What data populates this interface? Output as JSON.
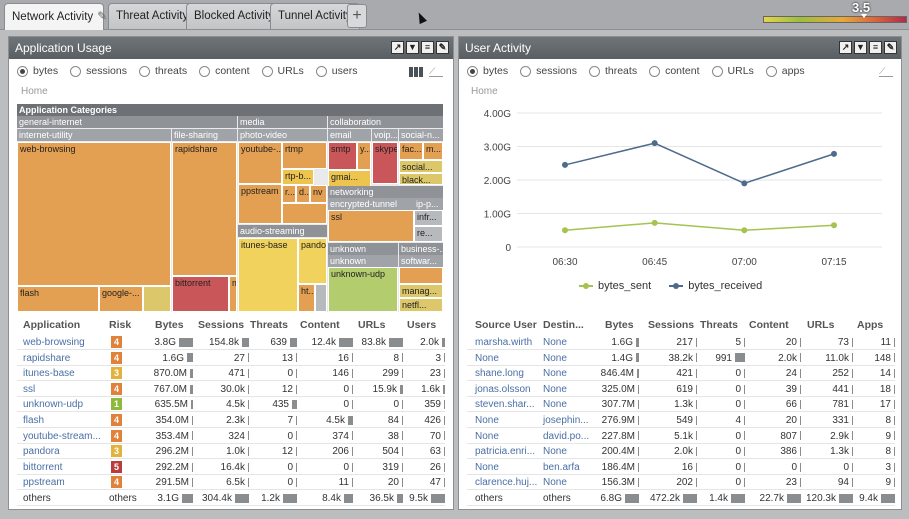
{
  "tabs": [
    {
      "label": "Network Activity",
      "active": true
    },
    {
      "label": "Threat Activity",
      "active": false
    },
    {
      "label": "Blocked Activity",
      "active": false
    },
    {
      "label": "Tunnel Activity",
      "active": false
    }
  ],
  "add_tab_label": "+",
  "risk_scale_value": "3.5",
  "app_usage": {
    "title": "Application Usage",
    "radios": [
      "bytes",
      "sessions",
      "threats",
      "content",
      "URLs",
      "users"
    ],
    "selected": "bytes",
    "breadcrumb": "Home",
    "treemap": {
      "root": "Application Categories",
      "categories": [
        "general-internet",
        "media",
        "collaboration",
        "networking",
        "unknown",
        "business-..."
      ],
      "subcategories": [
        "internet-utility",
        "file-sharing",
        "photo-video",
        "email",
        "voip...",
        "social-n...",
        "encrypted-tunnel",
        "ip-p...",
        "audio-streaming",
        "unknown",
        "softwar..."
      ],
      "apps": [
        "web-browsing",
        "rapidshare",
        "youtube-...",
        "rtmp",
        "smtp",
        "y...",
        "skype",
        "fac...",
        "m...",
        "gmai...",
        "social...",
        "rtp-b...",
        "black...",
        "ppstream",
        "r...",
        "d...",
        "nv",
        "ssl",
        "infr...",
        "itunes-base",
        "pando...",
        "re...",
        "unknown-udp",
        "flash",
        "google-...",
        "bittorrent",
        "ht...",
        "manag...",
        "netfl..."
      ]
    },
    "columns": [
      "Application",
      "Risk",
      "Bytes",
      "Sessions",
      "Threats",
      "Content",
      "URLs",
      "Users"
    ],
    "rows": [
      {
        "app": "web-browsing",
        "risk": "4",
        "bytes": "3.8G",
        "sessions": "154.8k",
        "threats": "639",
        "content": "12.4k",
        "urls": "83.8k",
        "users": "2.0k"
      },
      {
        "app": "rapidshare",
        "risk": "4",
        "bytes": "1.6G",
        "sessions": "27",
        "threats": "13",
        "content": "16",
        "urls": "8",
        "users": "3"
      },
      {
        "app": "itunes-base",
        "risk": "3",
        "bytes": "870.0M",
        "sessions": "471",
        "threats": "0",
        "content": "146",
        "urls": "299",
        "users": "23"
      },
      {
        "app": "ssl",
        "risk": "4",
        "bytes": "767.0M",
        "sessions": "30.0k",
        "threats": "12",
        "content": "0",
        "urls": "15.9k",
        "users": "1.6k"
      },
      {
        "app": "unknown-udp",
        "risk": "1",
        "bytes": "635.5M",
        "sessions": "4.5k",
        "threats": "435",
        "content": "0",
        "urls": "0",
        "users": "359"
      },
      {
        "app": "flash",
        "risk": "4",
        "bytes": "354.0M",
        "sessions": "2.3k",
        "threats": "7",
        "content": "4.5k",
        "urls": "84",
        "users": "426"
      },
      {
        "app": "youtube-stream...",
        "risk": "4",
        "bytes": "353.4M",
        "sessions": "324",
        "threats": "0",
        "content": "374",
        "urls": "38",
        "users": "70"
      },
      {
        "app": "pandora",
        "risk": "3",
        "bytes": "296.2M",
        "sessions": "1.0k",
        "threats": "12",
        "content": "206",
        "urls": "504",
        "users": "63"
      },
      {
        "app": "bittorrent",
        "risk": "5",
        "bytes": "292.2M",
        "sessions": "16.4k",
        "threats": "0",
        "content": "0",
        "urls": "319",
        "users": "26"
      },
      {
        "app": "ppstream",
        "risk": "4",
        "bytes": "291.5M",
        "sessions": "6.5k",
        "threats": "0",
        "content": "11",
        "urls": "20",
        "users": "47"
      },
      {
        "app": "others",
        "risk": "others",
        "bytes": "3.1G",
        "sessions": "304.4k",
        "threats": "1.2k",
        "content": "8.4k",
        "urls": "36.5k",
        "users": "9.5k"
      }
    ],
    "risk_colors": {
      "1": "#8fb93a",
      "3": "#e2b23c",
      "4": "#e0823a",
      "5": "#b93c3c"
    }
  },
  "user_activity": {
    "title": "User Activity",
    "radios": [
      "bytes",
      "sessions",
      "threats",
      "content",
      "URLs",
      "apps"
    ],
    "selected": "bytes",
    "breadcrumb": "Home",
    "columns": [
      "Source User",
      "Destin...",
      "Bytes",
      "Sessions",
      "Threats",
      "Content",
      "URLs",
      "Apps"
    ],
    "rows": [
      {
        "user": "marsha.wirth",
        "dest": "None",
        "bytes": "1.6G",
        "sessions": "217",
        "threats": "5",
        "content": "20",
        "urls": "73",
        "apps": "11"
      },
      {
        "user": "None",
        "dest": "None",
        "bytes": "1.4G",
        "sessions": "38.2k",
        "threats": "991",
        "content": "2.0k",
        "urls": "11.0k",
        "apps": "148"
      },
      {
        "user": "shane.long",
        "dest": "None",
        "bytes": "846.4M",
        "sessions": "421",
        "threats": "0",
        "content": "24",
        "urls": "252",
        "apps": "14"
      },
      {
        "user": "jonas.olsson",
        "dest": "None",
        "bytes": "325.0M",
        "sessions": "619",
        "threats": "0",
        "content": "39",
        "urls": "441",
        "apps": "18"
      },
      {
        "user": "steven.shar...",
        "dest": "None",
        "bytes": "307.7M",
        "sessions": "1.3k",
        "threats": "0",
        "content": "66",
        "urls": "781",
        "apps": "17"
      },
      {
        "user": "None",
        "dest": "josephin...",
        "bytes": "276.9M",
        "sessions": "549",
        "threats": "4",
        "content": "20",
        "urls": "331",
        "apps": "8"
      },
      {
        "user": "None",
        "dest": "david.po...",
        "bytes": "227.8M",
        "sessions": "5.1k",
        "threats": "0",
        "content": "807",
        "urls": "2.9k",
        "apps": "9"
      },
      {
        "user": "patricia.enri...",
        "dest": "None",
        "bytes": "200.4M",
        "sessions": "2.0k",
        "threats": "0",
        "content": "386",
        "urls": "1.3k",
        "apps": "8"
      },
      {
        "user": "None",
        "dest": "ben.arfa",
        "bytes": "186.4M",
        "sessions": "16",
        "threats": "0",
        "content": "0",
        "urls": "0",
        "apps": "3"
      },
      {
        "user": "clarence.huj...",
        "dest": "None",
        "bytes": "156.3M",
        "sessions": "202",
        "threats": "0",
        "content": "23",
        "urls": "94",
        "apps": "9"
      },
      {
        "user": "others",
        "dest": "others",
        "bytes": "6.8G",
        "sessions": "472.2k",
        "threats": "1.4k",
        "content": "22.7k",
        "urls": "120.3k",
        "apps": "9.4k"
      }
    ]
  },
  "chart_data": {
    "type": "line",
    "x": [
      "06:30",
      "06:45",
      "07:00",
      "07:15"
    ],
    "ylim": [
      0,
      4.0
    ],
    "yticks": [
      "0",
      "1.00G",
      "2.00G",
      "3.00G",
      "4.00G"
    ],
    "series": [
      {
        "name": "bytes_sent",
        "color": "#a6c250",
        "values": [
          0.5,
          0.72,
          0.5,
          0.65
        ]
      },
      {
        "name": "bytes_received",
        "color": "#4e6a8c",
        "values": [
          2.45,
          3.1,
          1.9,
          2.78
        ]
      }
    ]
  }
}
